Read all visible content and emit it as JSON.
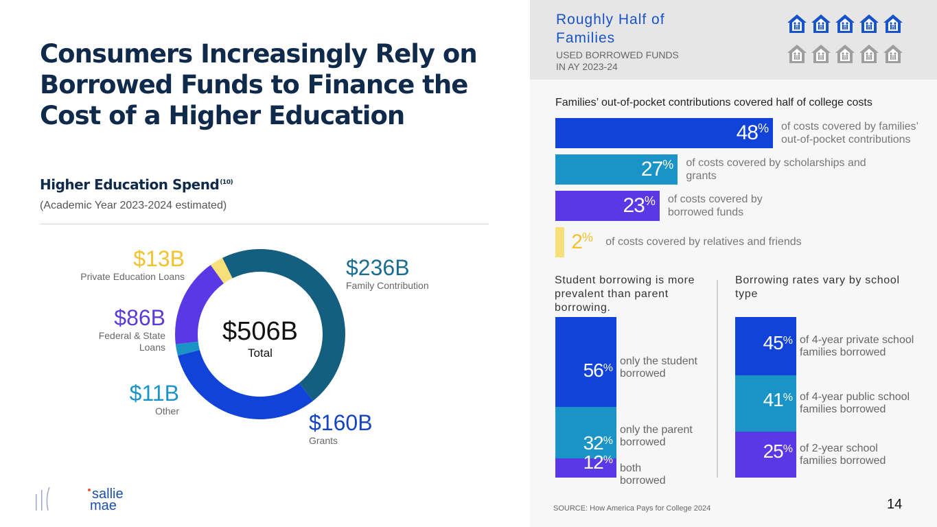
{
  "title": "Consumers Increasingly Rely on Borrowed Funds to Finance the Cost of a Higher Education",
  "subhead": "Higher Education Spend",
  "subhead_note": "(10)",
  "subnote": "(Academic Year 2023-2024 estimated)",
  "donut": {
    "center_value": "$506B",
    "center_label": "Total"
  },
  "colors": {
    "navy": "#0f2a4a",
    "teal": "#145e80",
    "blue": "#1143d9",
    "cyan": "#1a94c6",
    "purple": "#5a38e6",
    "yellow": "#f7e07a",
    "label_yellow": "#f2c230",
    "label_purple": "#5b3bd6",
    "label_cyan": "#1a94c6",
    "label_teal": "#1a6d8f",
    "label_blue": "#1645c2"
  },
  "chart_data": [
    {
      "type": "pie",
      "title": "Higher Education Spend (Academic Year 2023-2024 estimated)",
      "total": 506,
      "units": "$B",
      "slices": [
        {
          "name": "Family Contribution",
          "label": "$236B",
          "value": 236,
          "color": "#145e80"
        },
        {
          "name": "Grants",
          "label": "$160B",
          "value": 160,
          "color": "#1143d9"
        },
        {
          "name": "Other",
          "label": "$11B",
          "value": 11,
          "color": "#1a94c6"
        },
        {
          "name": "Federal & State Loans",
          "label": "$86B",
          "value": 86,
          "color": "#5a38e6"
        },
        {
          "name": "Private Education Loans",
          "label": "$13B",
          "value": 13,
          "color": "#f7e07a"
        }
      ]
    },
    {
      "type": "bar",
      "title": "Families’ out-of-pocket contributions covered half of college costs",
      "categories": [
        "of costs covered by families’ out-of-pocket contributions",
        "of costs covered by scholarships and grants",
        "of costs covered by borrowed funds",
        "of costs covered by relatives and friends"
      ],
      "values": [
        48,
        27,
        23,
        2
      ],
      "units": "%"
    },
    {
      "type": "bar",
      "title": "Student borrowing is more prevalent than parent borrowing.",
      "categories": [
        "only the student borrowed",
        "only the parent borrowed",
        "both borrowed"
      ],
      "values": [
        56,
        32,
        12
      ],
      "units": "%"
    },
    {
      "type": "bar",
      "title": "Borrowing rates vary by school type",
      "categories": [
        "of 4-year private school families borrowed",
        "of 4-year public school families borrowed",
        "of 2-year school families borrowed"
      ],
      "values": [
        45,
        41,
        25
      ],
      "units": "%"
    }
  ],
  "labels": {
    "private": {
      "value": "$13B",
      "name": "Private Education Loans"
    },
    "federal": {
      "value": "$86B",
      "name1": "Federal & State",
      "name2": "Loans"
    },
    "other": {
      "value": "$11B",
      "name": "Other"
    },
    "family": {
      "value": "$236B",
      "name": "Family Contribution"
    },
    "grants": {
      "value": "$160B",
      "name": "Grants"
    }
  },
  "headline": {
    "line1": "Roughly Half of",
    "line2": "Families",
    "sub1": "USED BORROWED FUNDS",
    "sub2": "IN AY 2023-24"
  },
  "houses": {
    "icon": "house-family-icon",
    "filled": 5,
    "total": 10,
    "fill_color": "#1853c7",
    "empty_color": "#9e9e9e"
  },
  "bars": {
    "title": "Families’ out-of-pocket contributions covered half of college costs",
    "items": [
      {
        "pct": "48",
        "sym": "%",
        "d1": "of costs covered by families’",
        "d2": "out-of-pocket contributions",
        "color": "#1143d9"
      },
      {
        "pct": "27",
        "sym": "%",
        "d1": "of costs covered by scholarships and",
        "d2": "grants",
        "color": "#1a94c6"
      },
      {
        "pct": "23",
        "sym": "%",
        "d1": "of costs covered by",
        "d2": "borrowed funds",
        "color": "#5a38e6"
      },
      {
        "pct": "2",
        "sym": "%",
        "d1": "of costs covered by relatives and friends",
        "d2": "",
        "color": "#f7e07a"
      }
    ]
  },
  "student": {
    "title1": "Student borrowing is more",
    "title2": "prevalent than parent",
    "title3": "borrowing.",
    "items": [
      {
        "pct": "56",
        "sym": "%",
        "d1": "only the student",
        "d2": "borrowed"
      },
      {
        "pct": "32",
        "sym": "%",
        "d1": "only the parent",
        "d2": "borrowed"
      },
      {
        "pct": "12",
        "sym": "%",
        "d1": "both",
        "d2": "borrowed"
      }
    ]
  },
  "school": {
    "title1": "Borrowing rates vary by school",
    "title2": "type",
    "items": [
      {
        "pct": "45",
        "sym": "%",
        "d1": "of 4-year private school",
        "d2": "families borrowed"
      },
      {
        "pct": "41",
        "sym": "%",
        "d1": "of 4-year public school",
        "d2": "families borrowed"
      },
      {
        "pct": "25",
        "sym": "%",
        "d1": "of 2-year school",
        "d2": "families borrowed"
      }
    ]
  },
  "logo": {
    "line1": "sallie",
    "line2": "mae"
  },
  "source": "SOURCE: How America Pays for College 2024",
  "page_number": "14"
}
